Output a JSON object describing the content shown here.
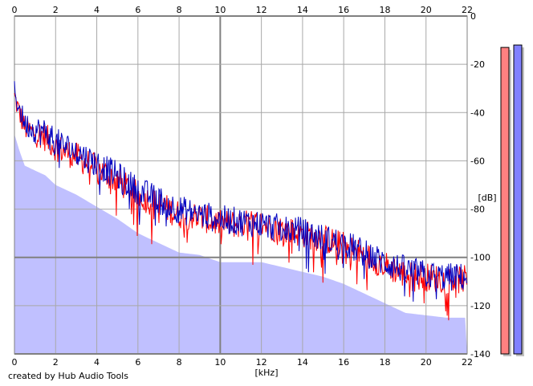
{
  "chart_data": {
    "type": "line",
    "title": "",
    "xlabel": "[kHz]",
    "ylabel": "[dB]",
    "xlim": [
      0,
      22
    ],
    "ylim": [
      -140,
      0
    ],
    "x_ticks": [
      "0",
      "2",
      "4",
      "6",
      "8",
      "10",
      "12",
      "14",
      "16",
      "18",
      "20",
      "22"
    ],
    "y_ticks": [
      "0",
      "-20",
      "-40",
      "-60",
      "-80",
      "-100",
      "-120",
      "-140"
    ],
    "grid": true,
    "fill_color": "#c0c0ff",
    "series": [
      {
        "color": "#ff0000",
        "x": [
          0,
          0.25,
          0.5,
          1,
          1.5,
          2,
          3,
          4,
          5,
          6,
          7,
          8,
          9,
          10,
          11,
          12,
          13,
          14,
          15,
          16,
          17,
          18,
          19,
          20,
          21,
          22
        ],
        "values": [
          -35,
          -42,
          -48,
          -50,
          -52,
          -56,
          -60,
          -65,
          -70,
          -76,
          -80,
          -84,
          -85,
          -88,
          -88,
          -88,
          -90,
          -92,
          -94,
          -97,
          -101,
          -105,
          -109,
          -110,
          -111,
          -111
        ]
      },
      {
        "color": "#0000c0",
        "x": [
          0,
          0.25,
          0.5,
          1,
          1.5,
          2,
          3,
          4,
          5,
          6,
          7,
          8,
          9,
          10,
          11,
          12,
          13,
          14,
          15,
          16,
          17,
          18,
          19,
          20,
          21,
          22
        ],
        "values": [
          -33,
          -40,
          -46,
          -49,
          -50,
          -54,
          -58,
          -63,
          -68,
          -74,
          -78,
          -82,
          -84,
          -86,
          -87,
          -88,
          -90,
          -91,
          -94,
          -96,
          -100,
          -104,
          -107,
          -109,
          -110,
          -110
        ]
      }
    ],
    "level_meters": [
      {
        "color": "#ff8080",
        "value_db": -13
      },
      {
        "color": "#8080ff",
        "value_db": -12
      }
    ]
  },
  "footer": {
    "credit": "created by Hub Audio Tools"
  }
}
